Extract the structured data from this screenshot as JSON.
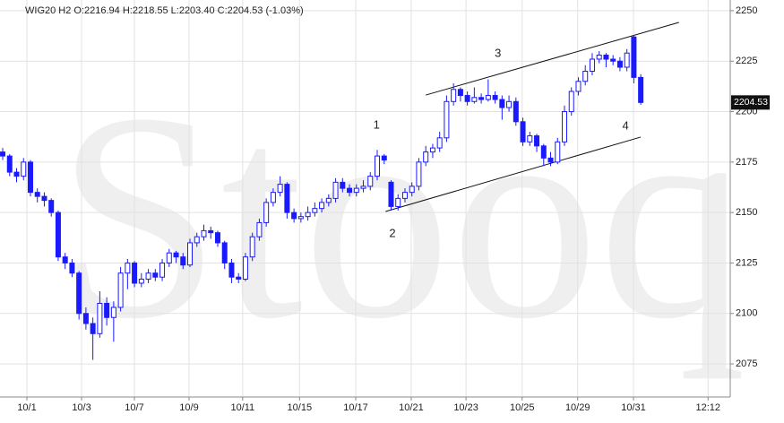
{
  "chart_data": {
    "type": "candlestick",
    "title": "WIG20  H2  O:2216.94  H:2218.55  L:2203.40  C:2204.53  (-1.03%)",
    "watermark": "Stooq",
    "color": "#1a1aff",
    "grid": true,
    "x": [
      0,
      1,
      2,
      3,
      4,
      5,
      6,
      7,
      8,
      9,
      10,
      11,
      12,
      13,
      14,
      15,
      16,
      17,
      18,
      19,
      20,
      21,
      22,
      23,
      24,
      25,
      26,
      27,
      28,
      29,
      30,
      31,
      32,
      33,
      34,
      35,
      36,
      37,
      38,
      39,
      40,
      41,
      42,
      43,
      44,
      45,
      46,
      47,
      48,
      49,
      50,
      51,
      52,
      53,
      54,
      55,
      56,
      57,
      58,
      59,
      60,
      61,
      62,
      63,
      64,
      65,
      66,
      67,
      68,
      69,
      70,
      71,
      72,
      73,
      74,
      75,
      76,
      77,
      78,
      79,
      80,
      81,
      82,
      83,
      84,
      85,
      86,
      87,
      88,
      89,
      90,
      91,
      92
    ],
    "open": [
      2180,
      2178,
      2170,
      2168,
      2175,
      2160,
      2158,
      2156,
      2150,
      2128,
      2125,
      2120,
      2100,
      2095,
      2090,
      2105,
      2098,
      2103,
      2120,
      2125,
      2115,
      2117,
      2120,
      2118,
      2125,
      2130,
      2128,
      2124,
      2135,
      2138,
      2141,
      2140,
      2135,
      2125,
      2118,
      2117,
      2128,
      2138,
      2145,
      2155,
      2160,
      2164,
      2150,
      2147,
      2148,
      2150,
      2152,
      2155,
      2157,
      2165,
      2162,
      2160,
      2162,
      2163,
      2168,
      2178,
      2165,
      2153,
      2157,
      2160,
      2163,
      2175,
      2180,
      2182,
      2187,
      2205,
      2211,
      2208,
      2205,
      2207,
      2206,
      2208,
      2206,
      2202,
      2205,
      2195,
      2185,
      2188,
      2183,
      2177,
      2175,
      2185,
      2200,
      2210,
      2215,
      2220,
      2226,
      2228,
      2226,
      2225,
      2222,
      2237,
      2216.94
    ],
    "high": [
      2182,
      2179,
      2172,
      2177,
      2176,
      2162,
      2160,
      2157,
      2151,
      2130,
      2127,
      2121,
      2103,
      2098,
      2111,
      2108,
      2106,
      2123,
      2127,
      2126,
      2120,
      2122,
      2122,
      2127,
      2132,
      2131,
      2130,
      2137,
      2140,
      2144,
      2143,
      2141,
      2136,
      2127,
      2120,
      2130,
      2140,
      2147,
      2157,
      2162,
      2168,
      2165,
      2152,
      2150,
      2153,
      2155,
      2157,
      2159,
      2167,
      2167,
      2164,
      2164,
      2166,
      2170,
      2181,
      2179,
      2166,
      2159,
      2162,
      2165,
      2177,
      2183,
      2184,
      2190,
      2208,
      2214,
      2212,
      2210,
      2212,
      2209,
      2216,
      2210,
      2208,
      2208,
      2207,
      2197,
      2190,
      2189,
      2184,
      2180,
      2187,
      2203,
      2212,
      2217,
      2223,
      2229,
      2230,
      2229,
      2228,
      2227,
      2231,
      2238,
      2218.55
    ],
    "low": [
      2176,
      2168,
      2165,
      2166,
      2158,
      2155,
      2153,
      2148,
      2126,
      2122,
      2118,
      2097,
      2092,
      2077,
      2088,
      2094,
      2086,
      2101,
      2112,
      2113,
      2113,
      2115,
      2116,
      2116,
      2123,
      2125,
      2122,
      2123,
      2133,
      2136,
      2137,
      2133,
      2122,
      2115,
      2115,
      2116,
      2126,
      2136,
      2143,
      2153,
      2158,
      2147,
      2145,
      2145,
      2146,
      2148,
      2150,
      2153,
      2155,
      2160,
      2158,
      2158,
      2160,
      2161,
      2166,
      2174,
      2151,
      2151,
      2155,
      2158,
      2161,
      2173,
      2177,
      2180,
      2185,
      2203,
      2205,
      2203,
      2204,
      2204,
      2205,
      2204,
      2196,
      2200,
      2193,
      2183,
      2183,
      2180,
      2173,
      2173,
      2174,
      2183,
      2198,
      2208,
      2213,
      2218,
      2224,
      2222,
      2223,
      2220,
      2220,
      2214,
      2203.4
    ],
    "close": [
      2178,
      2170,
      2168,
      2175,
      2160,
      2158,
      2156,
      2150,
      2128,
      2125,
      2120,
      2100,
      2095,
      2090,
      2105,
      2098,
      2103,
      2120,
      2125,
      2115,
      2117,
      2120,
      2118,
      2125,
      2130,
      2128,
      2124,
      2135,
      2138,
      2141,
      2140,
      2135,
      2125,
      2118,
      2117,
      2128,
      2138,
      2145,
      2155,
      2160,
      2164,
      2150,
      2147,
      2148,
      2150,
      2152,
      2155,
      2157,
      2165,
      2162,
      2160,
      2162,
      2163,
      2168,
      2178,
      2176,
      2153,
      2157,
      2160,
      2163,
      2175,
      2180,
      2182,
      2187,
      2205,
      2211,
      2208,
      2205,
      2207,
      2206,
      2208,
      2206,
      2202,
      2205,
      2195,
      2185,
      2188,
      2183,
      2177,
      2175,
      2185,
      2200,
      2210,
      2215,
      2220,
      2226,
      2228,
      2226,
      2225,
      2222,
      2229,
      2216.94,
      2204.53
    ],
    "xlim": [
      -0.39,
      104.9
    ],
    "xticks": [
      {
        "value": 3.49,
        "label": "10/1"
      },
      {
        "value": 11.37,
        "label": "10/3"
      },
      {
        "value": 18.99,
        "label": "10/7"
      },
      {
        "value": 26.87,
        "label": "10/9"
      },
      {
        "value": 34.6,
        "label": "10/11"
      },
      {
        "value": 42.8,
        "label": "10/15"
      },
      {
        "value": 50.9,
        "label": "10/17"
      },
      {
        "value": 58.9,
        "label": "10/21"
      },
      {
        "value": 66.8,
        "label": "10/23"
      },
      {
        "value": 74.9,
        "label": "10/25"
      },
      {
        "value": 82.9,
        "label": "10/29"
      },
      {
        "value": 90.95,
        "label": "10/31"
      },
      {
        "value": 101.7,
        "label": "12:12"
      }
    ],
    "ylim": [
      2058.6,
      2255.3
    ],
    "yticks": [
      2075,
      2100,
      2125,
      2150,
      2175,
      2200,
      2225,
      2250
    ],
    "trendlines": [
      {
        "x": [
          61.0,
          97.5
        ],
        "y": [
          2208.2,
          2244.2
        ]
      },
      {
        "x": [
          55.2,
          92.0
        ],
        "y": [
          2150.5,
          2187.4
        ]
      }
    ],
    "annotations": [
      {
        "text": "1",
        "x": 53.9,
        "y": 2193
      },
      {
        "text": "2",
        "x": 56.2,
        "y": 2139.4
      },
      {
        "text": "3",
        "x": 71.4,
        "y": 2228.7
      },
      {
        "text": "4",
        "x": 89.8,
        "y": 2192.7
      }
    ]
  }
}
